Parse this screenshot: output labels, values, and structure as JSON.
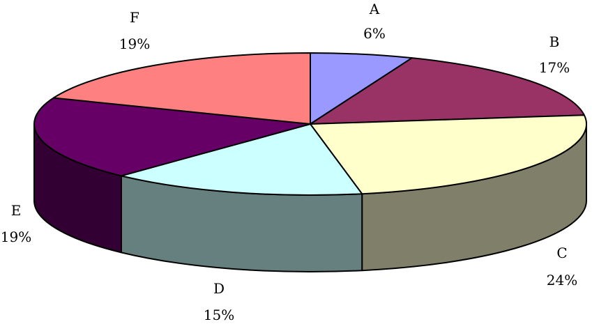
{
  "chart_data": {
    "type": "pie",
    "title": "",
    "slices": [
      {
        "label": "A",
        "value": 6,
        "percent_label": "6%",
        "color": "#9999FF",
        "side_color": "#6F6FBA"
      },
      {
        "label": "B",
        "value": 17,
        "percent_label": "17%",
        "color": "#993366",
        "side_color": "#6E2449"
      },
      {
        "label": "C",
        "value": 24,
        "percent_label": "24%",
        "color": "#FFFFCC",
        "side_color": "#80806A"
      },
      {
        "label": "D",
        "value": 15,
        "percent_label": "15%",
        "color": "#CCFFFF",
        "side_color": "#668080"
      },
      {
        "label": "E",
        "value": 19,
        "percent_label": "19%",
        "color": "#660066",
        "side_color": "#330033"
      },
      {
        "label": "F",
        "value": 19,
        "percent_label": "19%",
        "color": "#FF8080",
        "side_color": "#994D4D"
      }
    ],
    "style": "3d",
    "outline_color": "#000000"
  }
}
